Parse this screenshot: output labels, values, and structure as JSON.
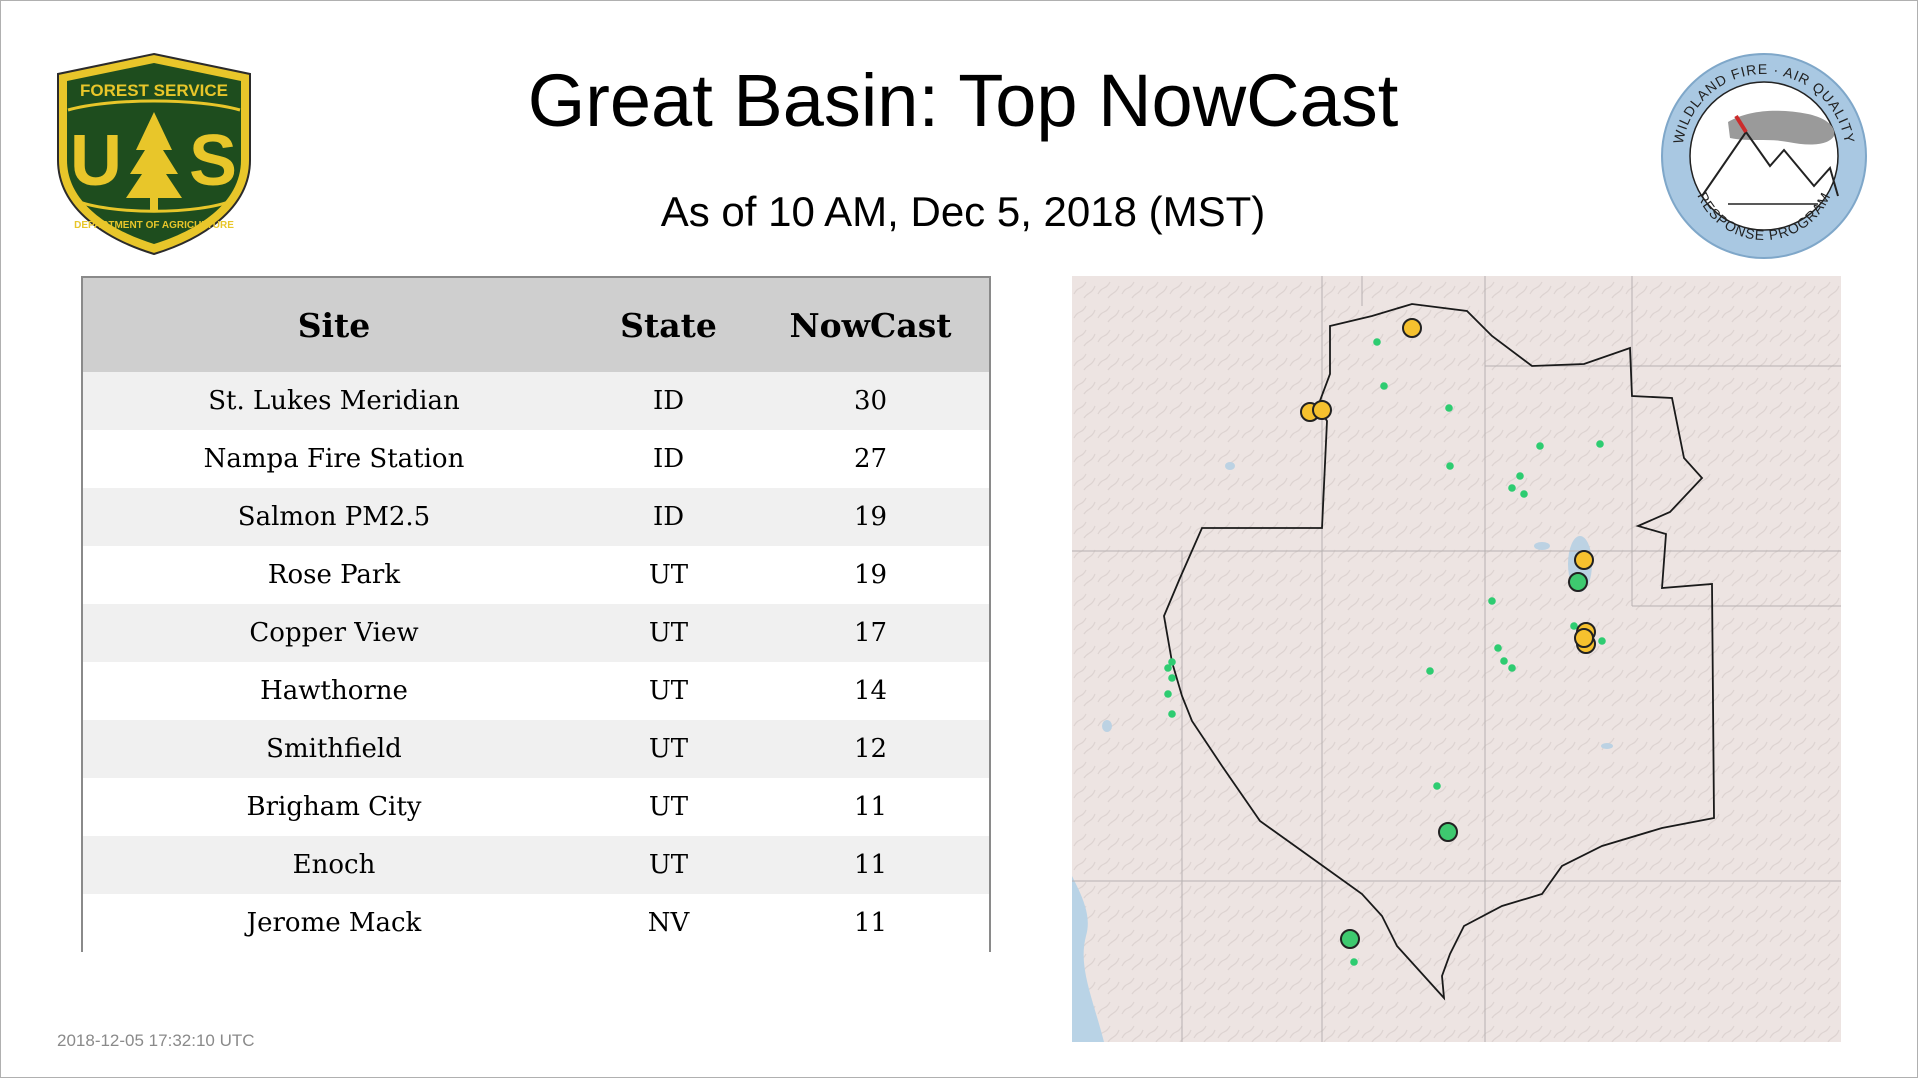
{
  "header": {
    "title": "Great Basin: Top NowCast",
    "subtitle": "As of 10 AM, Dec  5, 2018 (MST)"
  },
  "logos": {
    "left": {
      "icon": "forest-service-shield-icon",
      "top_text": "FOREST SERVICE",
      "bottom_text": "DEPARTMENT OF AGRICULTURE",
      "letters": "US"
    },
    "right": {
      "icon": "wildland-fire-air-quality-icon",
      "top_text": "WILDLAND FIRE · AIR QUALITY",
      "bottom_text": "RESPONSE PROGRAM"
    }
  },
  "table": {
    "headers": {
      "site": "Site",
      "state": "State",
      "nowcast": "NowCast"
    },
    "rows": [
      {
        "site": "St. Lukes Meridian",
        "state": "ID",
        "nowcast": "30"
      },
      {
        "site": "Nampa Fire Station",
        "state": "ID",
        "nowcast": "27"
      },
      {
        "site": "Salmon PM2.5",
        "state": "ID",
        "nowcast": "19"
      },
      {
        "site": "Rose Park",
        "state": "UT",
        "nowcast": "19"
      },
      {
        "site": "Copper View",
        "state": "UT",
        "nowcast": "17"
      },
      {
        "site": "Hawthorne",
        "state": "UT",
        "nowcast": "14"
      },
      {
        "site": "Smithfield",
        "state": "UT",
        "nowcast": "12"
      },
      {
        "site": "Brigham City",
        "state": "UT",
        "nowcast": "11"
      },
      {
        "site": "Enoch",
        "state": "UT",
        "nowcast": "11"
      },
      {
        "site": "Jerome Mack",
        "state": "NV",
        "nowcast": "11"
      }
    ]
  },
  "timestamp": "2018-12-05 17:32:10 UTC",
  "colors": {
    "moderate": "#f6c12e",
    "good": "#3ec96f",
    "small_site": "#2ecc71",
    "table_header_bg": "#cfcfcf",
    "shield_green": "#1e4d1e",
    "shield_gold": "#e8c62a",
    "badge_blue": "#a9c8e2"
  }
}
